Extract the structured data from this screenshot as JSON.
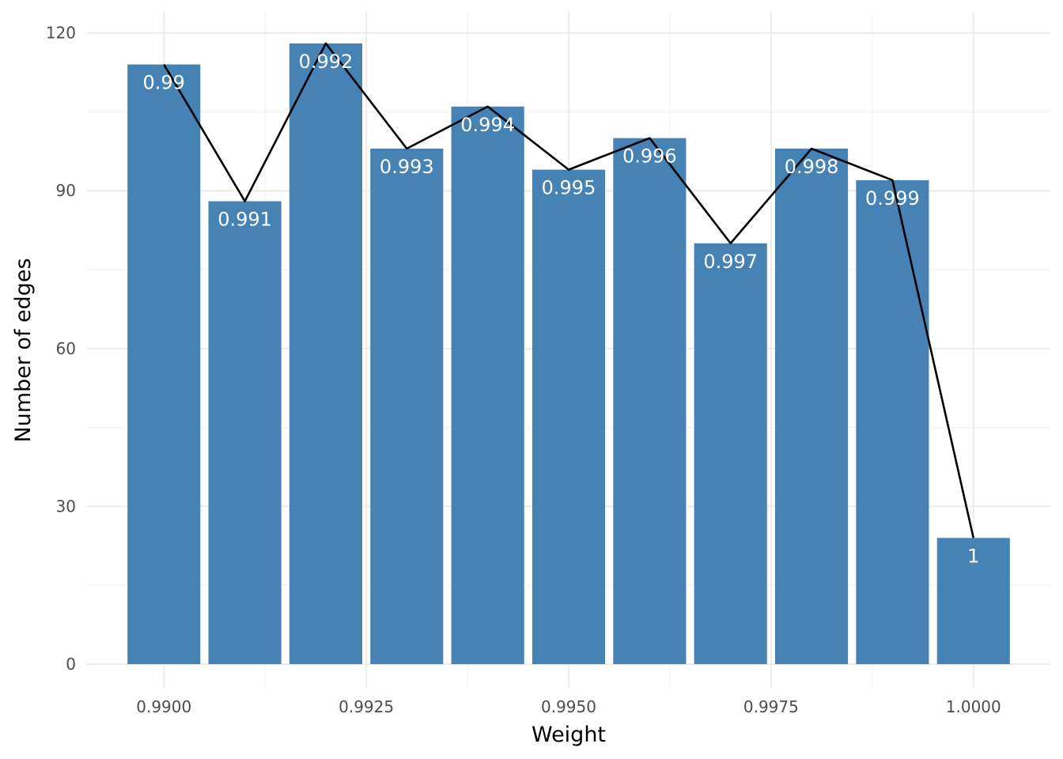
{
  "chart_data": {
    "type": "bar",
    "title": "",
    "xlabel": "Weight",
    "ylabel": "Number of edges",
    "x": [
      0.99,
      0.991,
      0.992,
      0.993,
      0.994,
      0.995,
      0.996,
      0.997,
      0.998,
      0.999,
      1.0
    ],
    "values": [
      114,
      88,
      118,
      98,
      106,
      94,
      100,
      80,
      98,
      92,
      24
    ],
    "bar_labels": [
      "0.99",
      "0.991",
      "0.992",
      "0.993",
      "0.994",
      "0.995",
      "0.996",
      "0.997",
      "0.998",
      "0.999",
      "1"
    ],
    "overlay_line": {
      "type": "line",
      "values": [
        114,
        88,
        118,
        98,
        106,
        94,
        100,
        80,
        98,
        92,
        24
      ],
      "color": "#000000"
    },
    "x_ticks": [
      0.99,
      0.9925,
      0.995,
      0.9975,
      1.0
    ],
    "x_tick_labels": [
      "0.9900",
      "0.9925",
      "0.9950",
      "0.9975",
      "1.0000"
    ],
    "y_ticks": [
      0,
      30,
      60,
      90,
      120
    ],
    "y_tick_labels": [
      "0",
      "30",
      "60",
      "90",
      "120"
    ],
    "xlim": [
      0.98905,
      1.00095
    ],
    "ylim": [
      -4.5,
      124
    ],
    "grid": true,
    "bar_color": "#4682b4",
    "legend": "none"
  }
}
